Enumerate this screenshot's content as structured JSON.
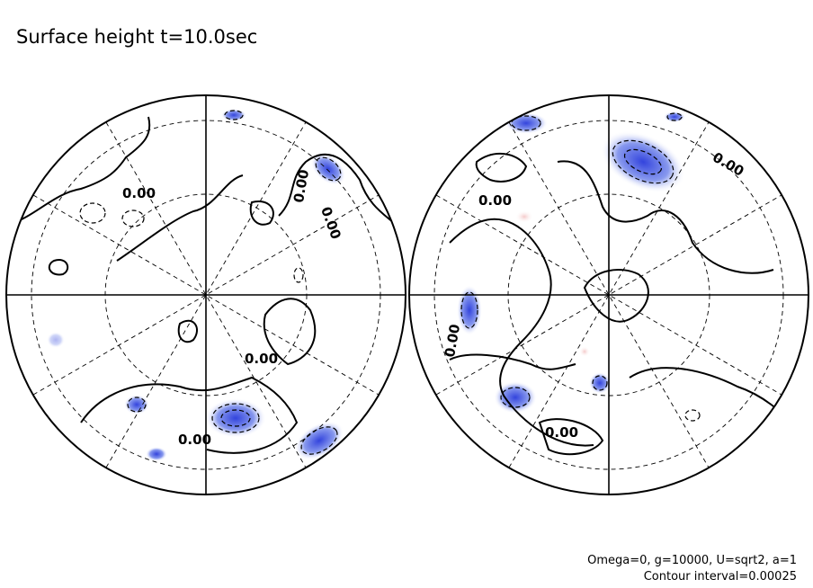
{
  "title": "Surface height t=10.0sec",
  "notes": [
    "Omega=0, g=10000, U=sqrt2, a=1",
    "Contour interval=0.00025"
  ],
  "contour_labels": [
    "0.00",
    "0.00",
    "0.00",
    "0.00",
    "0.00",
    "0.00",
    "0.00",
    "0.00",
    "0.00"
  ]
}
